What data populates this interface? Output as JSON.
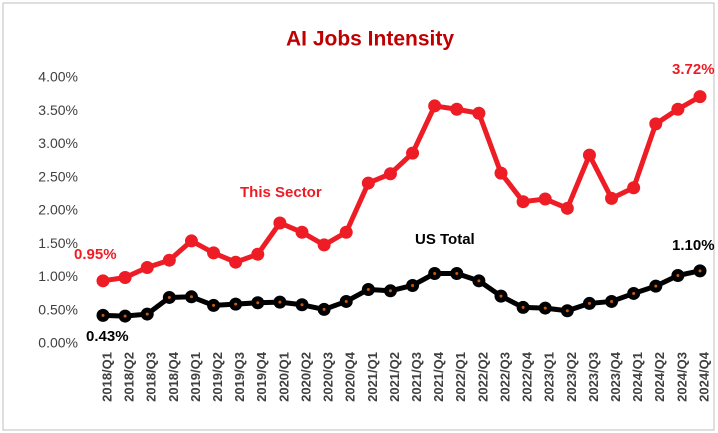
{
  "chart_data": {
    "type": "line",
    "title": "AI Jobs Intensity",
    "categories": [
      "2018/Q1",
      "2018/Q2",
      "2018/Q3",
      "2018/Q4",
      "2019/Q1",
      "2019/Q2",
      "2019/Q3",
      "2019/Q4",
      "2020/Q1",
      "2020/Q2",
      "2020/Q3",
      "2020/Q4",
      "2021/Q1",
      "2021/Q2",
      "2021/Q3",
      "2021/Q4",
      "2022/Q1",
      "2022/Q2",
      "2022/Q3",
      "2022/Q4",
      "2023/Q1",
      "2023/Q2",
      "2023/Q3",
      "2023/Q4",
      "2024/Q1",
      "2024/Q2",
      "2024/Q3",
      "2024/Q4"
    ],
    "series": [
      {
        "name": "This Sector",
        "color": "#ee1c25",
        "values": [
          0.95,
          1.0,
          1.15,
          1.26,
          1.55,
          1.37,
          1.23,
          1.35,
          1.82,
          1.68,
          1.49,
          1.68,
          2.42,
          2.56,
          2.87,
          3.58,
          3.53,
          3.47,
          2.57,
          2.14,
          2.18,
          2.04,
          2.84,
          2.19,
          2.35,
          3.31,
          3.53,
          3.72
        ],
        "value_labels": [
          "0.95%",
          null,
          null,
          null,
          null,
          null,
          null,
          null,
          null,
          null,
          null,
          null,
          null,
          null,
          null,
          null,
          null,
          null,
          null,
          null,
          null,
          null,
          null,
          null,
          null,
          null,
          null,
          "3.72%"
        ]
      },
      {
        "name": "US Total",
        "color": "#000000",
        "values": [
          0.43,
          0.42,
          0.45,
          0.7,
          0.71,
          0.58,
          0.6,
          0.62,
          0.63,
          0.59,
          0.52,
          0.64,
          0.82,
          0.8,
          0.88,
          1.06,
          1.06,
          0.95,
          0.72,
          0.55,
          0.54,
          0.5,
          0.61,
          0.64,
          0.76,
          0.87,
          1.03,
          1.1
        ],
        "value_labels": [
          "0.43%",
          null,
          null,
          null,
          null,
          null,
          null,
          null,
          null,
          null,
          null,
          null,
          null,
          null,
          null,
          null,
          null,
          null,
          null,
          null,
          null,
          null,
          null,
          null,
          null,
          null,
          null,
          "1.10%"
        ]
      }
    ],
    "ylim": [
      0,
      4
    ],
    "yticks": [
      {
        "value": 0,
        "label": "0.00%"
      },
      {
        "value": 0.5,
        "label": "0.50%"
      },
      {
        "value": 1,
        "label": "1.00%"
      },
      {
        "value": 1.5,
        "label": "1.50%"
      },
      {
        "value": 2,
        "label": "2.00%"
      },
      {
        "value": 2.5,
        "label": "2.50%"
      },
      {
        "value": 3,
        "label": "3.00%"
      },
      {
        "value": 3.5,
        "label": "3.50%"
      },
      {
        "value": 4,
        "label": "4.00%"
      }
    ],
    "grid": false
  }
}
